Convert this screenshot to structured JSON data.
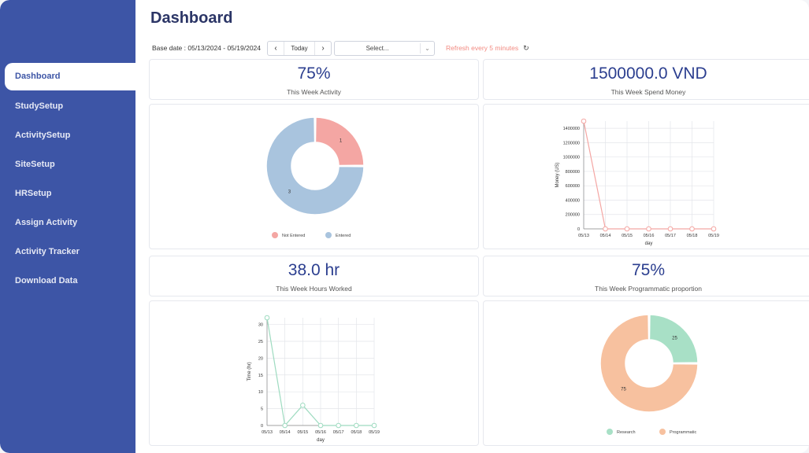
{
  "page": {
    "title": "Dashboard"
  },
  "sidebar": {
    "items": [
      {
        "label": "Dashboard",
        "active": true
      },
      {
        "label": "StudySetup"
      },
      {
        "label": "ActivitySetup"
      },
      {
        "label": "SiteSetup"
      },
      {
        "label": "HRSetup"
      },
      {
        "label": "Assign Activity"
      },
      {
        "label": "Activity Tracker"
      },
      {
        "label": "Download Data"
      }
    ]
  },
  "toolbar": {
    "base_date": "Base date : 05/13/2024 - 05/19/2024",
    "prev_icon": "chevron-left-icon",
    "today_label": "Today",
    "next_icon": "chevron-right-icon",
    "select_placeholder": "Select...",
    "refresh_text": "Refresh every 5 minutes",
    "refresh_icon": "refresh-icon"
  },
  "stats": {
    "activity": {
      "value": "75%",
      "label": "This Week Activity"
    },
    "money": {
      "value": "1500000.0 VND",
      "label": "This Week Spend Money"
    },
    "hours": {
      "value": "38.0 hr",
      "label": "This Week Hours Worked"
    },
    "programmatic": {
      "value": "75%",
      "label": "This Week Programmatic proportion"
    }
  },
  "colors": {
    "sidebar_bg": "#3d55a6",
    "accent": "#2b3e8f",
    "refresh": "#f28b82",
    "not_entered": "#f4a6a3",
    "entered": "#a9c4de",
    "research": "#a8e0c6",
    "programmatic": "#f7c19f",
    "money_line": "#f4a6a3",
    "hours_line": "#9edbc0"
  },
  "chart_data": [
    {
      "type": "pie",
      "slices": [
        {
          "name": "Not Entered",
          "value": 1,
          "label": "1"
        },
        {
          "name": "Entered",
          "value": 3,
          "label": "3"
        }
      ],
      "donut": true,
      "legend": "bottom"
    },
    {
      "type": "line",
      "x": [
        "05/13",
        "05/14",
        "05/15",
        "05/16",
        "05/17",
        "05/18",
        "05/19"
      ],
      "series": [
        {
          "values": [
            1500000,
            0,
            0,
            0,
            0,
            0,
            0
          ]
        }
      ],
      "xlabel": "day",
      "ylabel": "Money (US)",
      "yticks": [
        "0",
        "200000",
        "400000",
        "600000",
        "800000",
        "1000000",
        "1200000",
        "1400000"
      ],
      "ylim": [
        0,
        1500000
      ],
      "grid": true
    },
    {
      "type": "line",
      "x": [
        "05/13",
        "05/14",
        "05/15",
        "05/16",
        "05/17",
        "05/18",
        "05/19"
      ],
      "series": [
        {
          "values": [
            32,
            0,
            6,
            0,
            0,
            0,
            0
          ]
        }
      ],
      "xlabel": "day",
      "ylabel": "Time (hr)",
      "yticks": [
        "0",
        "5",
        "10",
        "15",
        "20",
        "25",
        "30"
      ],
      "ylim": [
        0,
        32
      ],
      "grid": true
    },
    {
      "type": "pie",
      "slices": [
        {
          "name": "Research",
          "value": 25,
          "label": "25"
        },
        {
          "name": "Programmatic",
          "value": 75,
          "label": "75"
        }
      ],
      "donut": true,
      "legend": "bottom"
    }
  ]
}
